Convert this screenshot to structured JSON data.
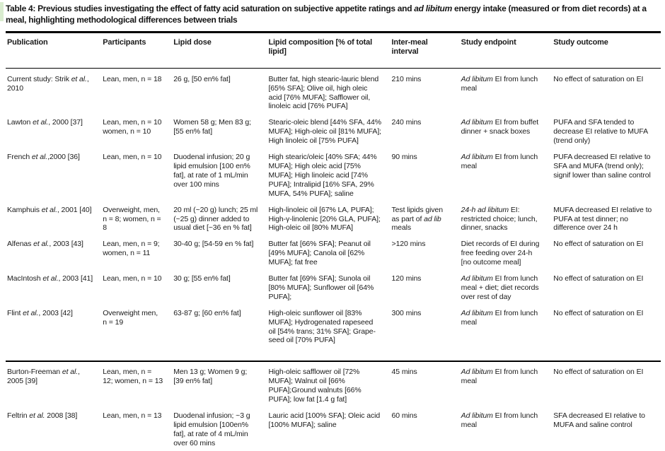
{
  "page": {
    "title": "Table 4: Previous studies investigating the effect of fatty acid saturation on subjective appetite ratings and *ad libitum* energy intake (measured or from diet records) at a meal, highlighting methodological differences between trials"
  },
  "table": {
    "columns": [
      "Publication",
      "Participants",
      "Lipid dose",
      "Lipid composition [% of total lipid]",
      "Inter-meal interval",
      "Study endpoint",
      "Study outcome"
    ],
    "rows": [
      {
        "publication": "Current study: Strik *et al.*, 2010",
        "participants": "Lean, men, n = 18",
        "lipid_dose": "26 g, [50 en% fat]",
        "lipid_composition": "Butter fat, high stearic-lauric blend [65% SFA]; Olive oil, high oleic acid [76% MUFA]; Safflower oil, linoleic acid [76% PUFA]",
        "inter_meal_interval": "210 mins",
        "study_endpoint": "*Ad libitum* EI from lunch meal",
        "study_outcome": "No effect of saturation on EI",
        "divider_before": false,
        "section_end": false
      },
      {
        "publication": "Lawton *et al.*, 2000 [37]",
        "participants": "Lean, men, n = 10 women, n = 10",
        "lipid_dose": "Women 58 g; Men 83 g; [55 en% fat]",
        "lipid_composition": "Stearic-oleic blend [44% SFA, 44% MUFA]; High-oleic oil [81% MUFA]; High linoleic oil [75% PUFA]",
        "inter_meal_interval": "240 mins",
        "study_endpoint": "*Ad libitum* EI from buffet dinner + snack boxes",
        "study_outcome": "PUFA and SFA tended to decrease EI relative to MUFA (trend only)",
        "divider_before": false,
        "section_end": false
      },
      {
        "publication": "French *et al.*,2000 [36]",
        "participants": "Lean, men, n = 10",
        "lipid_dose": "Duodenal infusion; 20 g lipid emulsion [100 en% fat], at rate of 1 mL/min over 100 mins",
        "lipid_composition": "High stearic/oleic [40% SFA; 44% MUFA]; High oleic acid [75% MUFA]; High linoleic acid [74% PUFA]; Intralipid [16% SFA, 29% MUFA, 54% PUFA]; saline",
        "inter_meal_interval": "90 mins",
        "study_endpoint": "*Ad libitum* EI from lunch meal",
        "study_outcome": "PUFA decreased EI relative to SFA and MUFA (trend only); signif lower than saline control",
        "divider_before": false,
        "section_end": false
      },
      {
        "publication": "Kamphuis *et al.*, 2001 [40]",
        "participants": "Overweight, men, n = 8; women, n = 8",
        "lipid_dose": "20 ml (~20 g) lunch; 25 ml (~25 g) dinner added to usual diet [~36 en % fat]",
        "lipid_composition": "High-linoleic oil [67% LA, PUFA]; High-γ-linolenic [20% GLA, PUFA]; High-oleic oil [80% MUFA]",
        "inter_meal_interval": "Test lipids given as part of *ad lib* meals",
        "study_endpoint": "*24-h ad libitum* EI: restricted choice; lunch, dinner, snacks",
        "study_outcome": "MUFA decreased EI relative to PUFA at test dinner; no difference over 24 h",
        "divider_before": false,
        "section_end": false
      },
      {
        "publication": "Alfenas *et al.*, 2003 [43]",
        "participants": "Lean, men, n = 9; women, n = 11",
        "lipid_dose": "30-40 g; [54-59 en % fat]",
        "lipid_composition": "Butter fat [66% SFA]; Peanut oil [49% MUFA]; Canola oil [62% MUFA]; fat free",
        "inter_meal_interval": ">120 mins",
        "study_endpoint": "Diet records of EI during free feeding over 24-h [no outcome meal]",
        "study_outcome": "No effect of saturation on EI",
        "divider_before": false,
        "section_end": false
      },
      {
        "publication": "MacIntosh *et al.*, 2003 [41]",
        "participants": "Lean, men, n = 10",
        "lipid_dose": "30 g; [55 en% fat]",
        "lipid_composition": "Butter fat [69% SFA]; Sunola oil [80% MUFA]; Sunflower oil [64% PUFA];",
        "inter_meal_interval": "120 mins",
        "study_endpoint": "*Ad libitum* EI from lunch meal + diet; diet records over rest of day",
        "study_outcome": "No effect of saturation on EI",
        "divider_before": false,
        "section_end": false
      },
      {
        "publication": "Flint *et al.*, 2003 [42]",
        "participants": "Overweight men, n = 19",
        "lipid_dose": "63-87 g; [60 en% fat]",
        "lipid_composition": "High-oleic sunflower oil [83% MUFA]; Hydrogenated rapeseed oil [54% trans; 31% SFA]; Grape- seed oil [70% PUFA]",
        "inter_meal_interval": "300 mins",
        "study_endpoint": "*Ad libitum* EI from lunch meal",
        "study_outcome": "No effect of saturation on EI",
        "divider_before": false,
        "section_end": true
      },
      {
        "publication": "Burton-Freeman *et al.*, 2005 [39]",
        "participants": "Lean, men, n = 12; women, n = 13",
        "lipid_dose": "Men 13 g; Women 9 g; [39 en% fat]",
        "lipid_composition": "High-oleic safflower oil [72% MUFA]; Walnut oil [66% PUFA];Ground walnuts [66% PUFA]; low fat [1.4 g fat]",
        "inter_meal_interval": "45 mins",
        "study_endpoint": "*Ad libitum* EI from lunch meal",
        "study_outcome": "No effect of saturation on EI",
        "divider_before": true,
        "section_end": false
      },
      {
        "publication": "Feltrin *et al.* 2008 [38]",
        "participants": "Lean, men, n = 13",
        "lipid_dose": "Duodenal infusion; ~3 g lipid emulsion [100en% fat], at rate of 4 mL/min over 60 mins",
        "lipid_composition": "Lauric acid [100% SFA]; Oleic acid [100% MUFA]; saline",
        "inter_meal_interval": "60 mins",
        "study_endpoint": "*Ad libitum* EI from lunch meal",
        "study_outcome": "SFA decreased EI relative to MUFA and saline control",
        "divider_before": false,
        "section_end": false
      }
    ]
  }
}
